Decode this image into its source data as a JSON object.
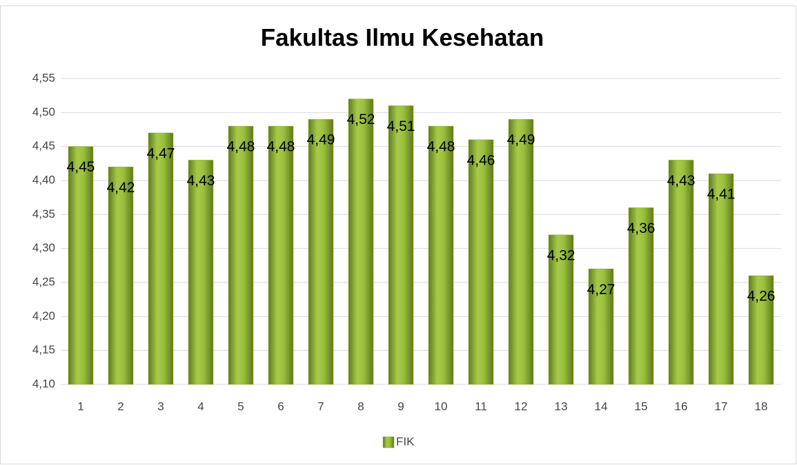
{
  "chart_data": {
    "type": "bar",
    "title": "Fakultas Ilmu Kesehatan",
    "categories": [
      "1",
      "2",
      "3",
      "4",
      "5",
      "6",
      "7",
      "8",
      "9",
      "10",
      "11",
      "12",
      "13",
      "14",
      "15",
      "16",
      "17",
      "18"
    ],
    "series": [
      {
        "name": "FIK",
        "color": "#8fb532",
        "values": [
          4.45,
          4.42,
          4.47,
          4.43,
          4.48,
          4.48,
          4.49,
          4.52,
          4.51,
          4.48,
          4.46,
          4.49,
          4.32,
          4.27,
          4.36,
          4.43,
          4.41,
          4.26
        ],
        "value_labels": [
          "4,45",
          "4,42",
          "4,47",
          "4,43",
          "4,48",
          "4,48",
          "4,49",
          "4,52",
          "4,51",
          "4,48",
          "4,46",
          "4,49",
          "4,32",
          "4,27",
          "4,36",
          "4,43",
          "4,41",
          "4,26"
        ]
      }
    ],
    "ylim": [
      4.1,
      4.55
    ],
    "yticks": [
      {
        "value": 4.1,
        "label": "4,10"
      },
      {
        "value": 4.15,
        "label": "4,15"
      },
      {
        "value": 4.2,
        "label": "4,20"
      },
      {
        "value": 4.25,
        "label": "4,25"
      },
      {
        "value": 4.3,
        "label": "4,30"
      },
      {
        "value": 4.35,
        "label": "4,35"
      },
      {
        "value": 4.4,
        "label": "4,40"
      },
      {
        "value": 4.45,
        "label": "4,45"
      },
      {
        "value": 4.5,
        "label": "4,50"
      },
      {
        "value": 4.55,
        "label": "4,55"
      }
    ],
    "grid": true,
    "legend": "bottom"
  }
}
